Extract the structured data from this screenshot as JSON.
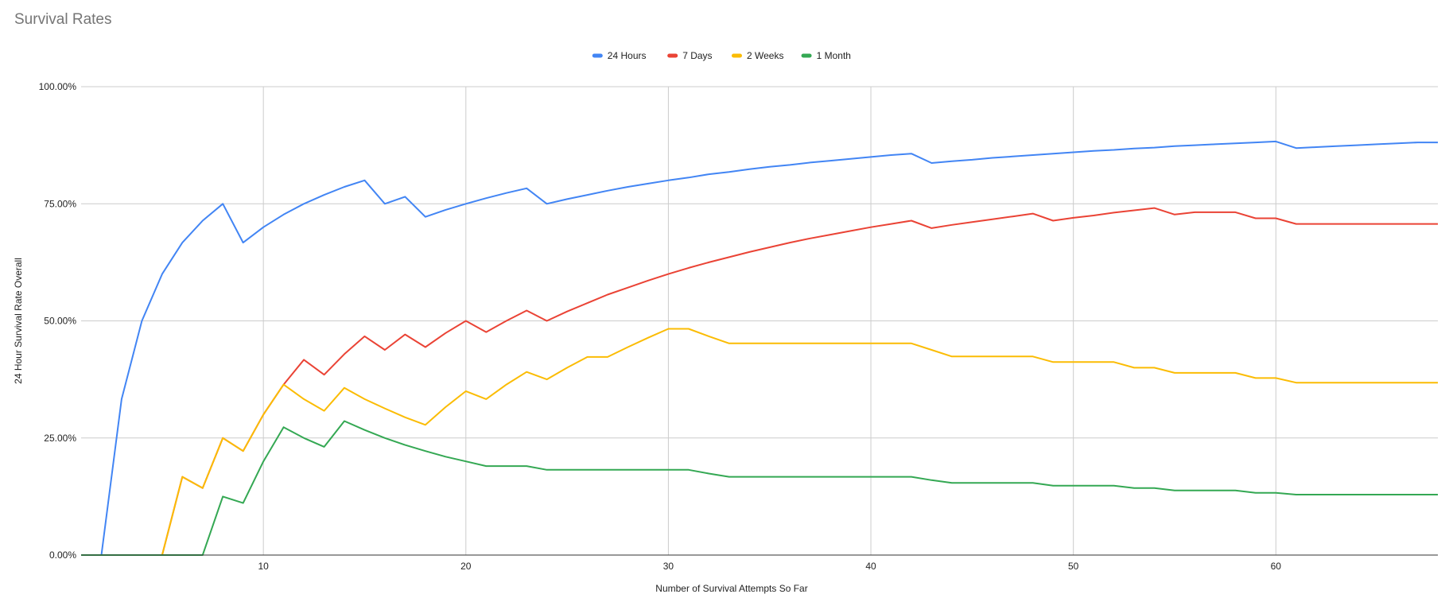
{
  "chart_data": {
    "type": "line",
    "title": "Survival Rates",
    "xlabel": "Number of Survival Attempts So Far",
    "ylabel": "24 Hour Survival Rate Overall",
    "xlim": [
      1,
      68
    ],
    "ylim": [
      0,
      1
    ],
    "x_ticks": [
      10,
      20,
      30,
      40,
      50,
      60
    ],
    "x_tick_labels": [
      "10",
      "20",
      "30",
      "40",
      "50",
      "60"
    ],
    "y_ticks": [
      0,
      0.25,
      0.5,
      0.75,
      1.0
    ],
    "y_tick_labels": [
      "0.00%",
      "25.00%",
      "50.00%",
      "75.00%",
      "100.00%"
    ],
    "grid": true,
    "legend_position": "top",
    "x": [
      1,
      2,
      3,
      4,
      5,
      6,
      7,
      8,
      9,
      10,
      11,
      12,
      13,
      14,
      15,
      16,
      17,
      18,
      19,
      20,
      21,
      22,
      23,
      24,
      25,
      26,
      27,
      28,
      29,
      30,
      31,
      32,
      33,
      34,
      35,
      36,
      37,
      38,
      39,
      40,
      41,
      42,
      43,
      44,
      45,
      46,
      47,
      48,
      49,
      50,
      51,
      52,
      53,
      54,
      55,
      56,
      57,
      58,
      59,
      60,
      61,
      62,
      63,
      64,
      65,
      66,
      67,
      68
    ],
    "series": [
      {
        "name": "24 Hours",
        "color": "#4285f4",
        "values": [
          0,
          0,
          0.333,
          0.5,
          0.6,
          0.667,
          0.714,
          0.75,
          0.667,
          0.7,
          0.727,
          0.75,
          0.769,
          0.786,
          0.8,
          0.75,
          0.765,
          0.722,
          0.737,
          0.75,
          0.762,
          0.773,
          0.783,
          0.75,
          0.76,
          0.769,
          0.778,
          0.786,
          0.793,
          0.8,
          0.806,
          0.813,
          0.818,
          0.824,
          0.829,
          0.833,
          0.838,
          0.842,
          0.846,
          0.85,
          0.854,
          0.857,
          0.837,
          0.841,
          0.844,
          0.848,
          0.851,
          0.854,
          0.857,
          0.86,
          0.863,
          0.865,
          0.868,
          0.87,
          0.873,
          0.875,
          0.877,
          0.879,
          0.881,
          0.883,
          0.869,
          0.871,
          0.873,
          0.875,
          0.877,
          0.879,
          0.881,
          0.881
        ]
      },
      {
        "name": "7 Days",
        "color": "#ea4335",
        "values": [
          0,
          0,
          0,
          0,
          0,
          0.167,
          0.143,
          0.25,
          0.222,
          0.3,
          0.364,
          0.417,
          0.385,
          0.429,
          0.467,
          0.438,
          0.471,
          0.444,
          0.474,
          0.5,
          0.476,
          0.5,
          0.522,
          0.5,
          0.52,
          0.538,
          0.556,
          0.571,
          0.586,
          0.6,
          0.613,
          0.625,
          0.636,
          0.647,
          0.657,
          0.667,
          0.676,
          0.684,
          0.692,
          0.7,
          0.707,
          0.714,
          0.698,
          0.705,
          0.711,
          0.717,
          0.723,
          0.729,
          0.714,
          0.72,
          0.725,
          0.731,
          0.736,
          0.741,
          0.727,
          0.732,
          0.732,
          0.732,
          0.719,
          0.719,
          0.707,
          0.707,
          0.707,
          0.707,
          0.707,
          0.707,
          0.707,
          0.707
        ]
      },
      {
        "name": "2 Weeks",
        "color": "#fbbc04",
        "values": [
          0,
          0,
          0,
          0,
          0,
          0.167,
          0.143,
          0.25,
          0.222,
          0.3,
          0.364,
          0.333,
          0.308,
          0.357,
          0.333,
          0.313,
          0.294,
          0.278,
          0.316,
          0.35,
          0.333,
          0.364,
          0.391,
          0.375,
          0.4,
          0.423,
          0.423,
          0.444,
          0.464,
          0.483,
          0.483,
          0.467,
          0.452,
          0.452,
          0.452,
          0.452,
          0.452,
          0.452,
          0.452,
          0.452,
          0.452,
          0.452,
          0.438,
          0.424,
          0.424,
          0.424,
          0.424,
          0.424,
          0.412,
          0.412,
          0.412,
          0.412,
          0.4,
          0.4,
          0.389,
          0.389,
          0.389,
          0.389,
          0.378,
          0.378,
          0.368,
          0.368,
          0.368,
          0.368,
          0.368,
          0.368,
          0.368,
          0.368
        ]
      },
      {
        "name": "1 Month",
        "color": "#34a853",
        "values": [
          0,
          0,
          0,
          0,
          0,
          0,
          0,
          0.125,
          0.111,
          0.2,
          0.273,
          0.25,
          0.231,
          0.286,
          0.267,
          0.25,
          0.235,
          0.222,
          0.21,
          0.2,
          0.19,
          0.19,
          0.19,
          0.182,
          0.182,
          0.182,
          0.182,
          0.182,
          0.182,
          0.182,
          0.182,
          0.174,
          0.167,
          0.167,
          0.167,
          0.167,
          0.167,
          0.167,
          0.167,
          0.167,
          0.167,
          0.167,
          0.16,
          0.154,
          0.154,
          0.154,
          0.154,
          0.154,
          0.148,
          0.148,
          0.148,
          0.148,
          0.143,
          0.143,
          0.138,
          0.138,
          0.138,
          0.138,
          0.133,
          0.133,
          0.129,
          0.129,
          0.129,
          0.129,
          0.129,
          0.129,
          0.129,
          0.129
        ]
      }
    ]
  }
}
